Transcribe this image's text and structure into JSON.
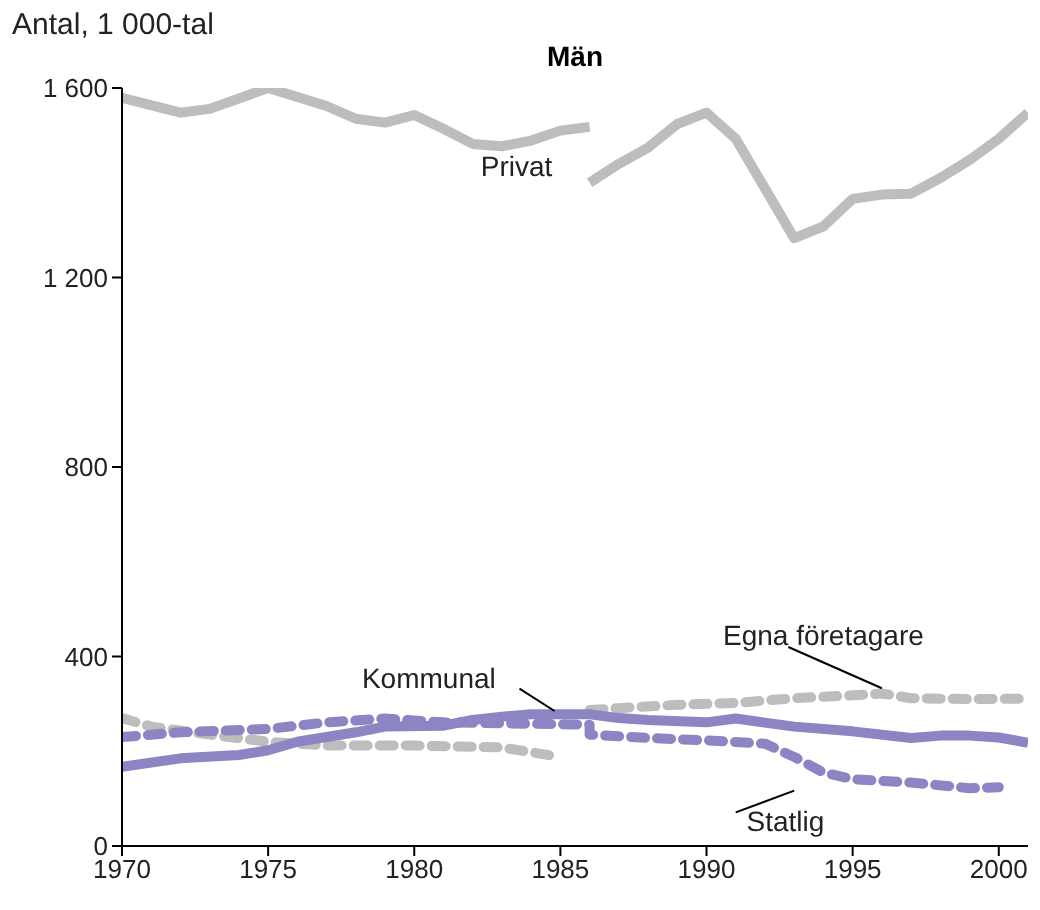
{
  "chart_data": {
    "type": "line",
    "title": "Män",
    "ylabel": "Antal, 1 000-tal",
    "xlim": [
      1970,
      2001
    ],
    "xticks": [
      1970,
      1975,
      1980,
      1985,
      1990,
      1995,
      2000
    ],
    "ylim": [
      0,
      1600
    ],
    "yticks": [
      0,
      400,
      800,
      {
        "value": 1200,
        "label": "1 200"
      },
      {
        "value": 1600,
        "label": "1 600"
      }
    ],
    "marker": "none",
    "series": [
      {
        "name": "Privat",
        "color": "#bdbdbd",
        "line_style": "solid",
        "x": [
          1970,
          1972,
          1973,
          1975,
          1977,
          1978,
          1979,
          1980,
          1981,
          1982,
          1983,
          1984,
          1985,
          1986
        ],
        "values": [
          1579,
          1548,
          1556,
          1600,
          1562,
          1535,
          1527,
          1543,
          1514,
          1482,
          1477,
          1489,
          1510,
          1518
        ]
      },
      {
        "color": "#bdbdbd",
        "line_style": "solid",
        "x": [
          1986,
          1987,
          1988,
          1989,
          1990,
          1991,
          1993,
          1994,
          1995,
          1996,
          1997,
          1998,
          1999,
          2000,
          2001
        ],
        "values": [
          1400,
          1440,
          1474,
          1524,
          1548,
          1493,
          1283,
          1308,
          1366,
          1375,
          1377,
          1410,
          1448,
          1493,
          1548
        ]
      },
      {
        "color": "#bdbdbd",
        "line_style": "dashed",
        "x": [
          1970,
          1971,
          1973,
          1975,
          1977,
          1980,
          1983,
          1984,
          1985
        ],
        "values": [
          270,
          252,
          235,
          220,
          212,
          212,
          208,
          198,
          188
        ]
      },
      {
        "name": "Egna företagare",
        "color": "#bdbdbd",
        "line_style": "dashed",
        "x": [
          1986,
          1987,
          1989,
          1991,
          1993,
          1995,
          1996,
          1997,
          1999,
          2001
        ],
        "values": [
          287,
          291,
          298,
          302,
          312,
          318,
          322,
          312,
          310,
          311
        ]
      },
      {
        "name": "Kommunal",
        "color": "#8c85c3",
        "line_style": "solid",
        "x": [
          1970,
          1972,
          1974,
          1975,
          1976,
          1978,
          1979,
          1981,
          1982,
          1983,
          1984,
          1986,
          1987,
          1988,
          1990,
          1991,
          1993,
          1995,
          1997,
          1998,
          1999,
          2000,
          2001
        ],
        "values": [
          167,
          185,
          192,
          202,
          220,
          240,
          252,
          254,
          266,
          273,
          278,
          278,
          270,
          266,
          261,
          269,
          252,
          242,
          228,
          233,
          233,
          229,
          218
        ]
      },
      {
        "name": "Statlig",
        "color": "#8c85c3",
        "line_style": "dashed",
        "x": [
          1970,
          1972,
          1975,
          1977,
          1979,
          1981,
          1983,
          1985,
          1986,
          1986,
          1988,
          1990,
          1992,
          1993,
          1994,
          1995,
          1997,
          1999,
          2000
        ],
        "values": [
          230,
          240,
          247,
          261,
          269,
          261,
          259,
          257,
          256,
          235,
          228,
          223,
          216,
          188,
          155,
          141,
          134,
          122,
          124
        ]
      }
    ]
  }
}
